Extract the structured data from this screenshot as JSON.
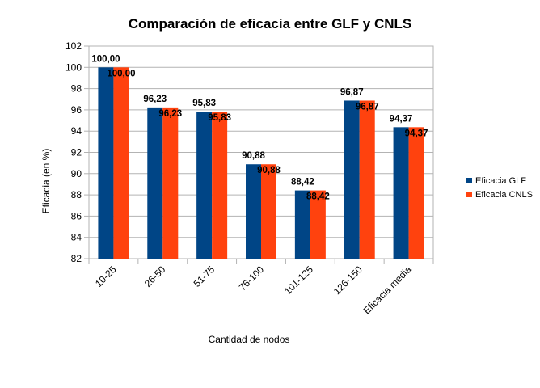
{
  "chart_data": {
    "type": "bar",
    "title": "Comparación de eficacia entre GLF y CNLS",
    "xlabel": "Cantidad de nodos",
    "ylabel": "Eficacia (en %)",
    "ylim": [
      82,
      102
    ],
    "yticks": [
      "82",
      "84",
      "86",
      "88",
      "90",
      "92",
      "94",
      "96",
      "98",
      "100",
      "102"
    ],
    "grid": true,
    "legend_position": "right",
    "categories": [
      "10-25",
      "26-50",
      "51-75",
      "76-100",
      "101-125",
      "126-150",
      "Eficacia media"
    ],
    "series": [
      {
        "name": "Eficacia GLF",
        "color": "#004586",
        "values": [
          100.0,
          96.23,
          95.83,
          90.88,
          88.42,
          96.87,
          94.37
        ],
        "labels": [
          "100,00",
          "96,23",
          "95,83",
          "90,88",
          "88,42",
          "96,87",
          "94,37"
        ]
      },
      {
        "name": "Eficacia CNLS",
        "color": "#ff420e",
        "values": [
          100.0,
          96.23,
          95.83,
          90.88,
          88.42,
          96.87,
          94.37
        ],
        "labels": [
          "100,00",
          "96,23",
          "95,83",
          "90,88",
          "88,42",
          "96,87",
          "94,37"
        ]
      }
    ]
  }
}
